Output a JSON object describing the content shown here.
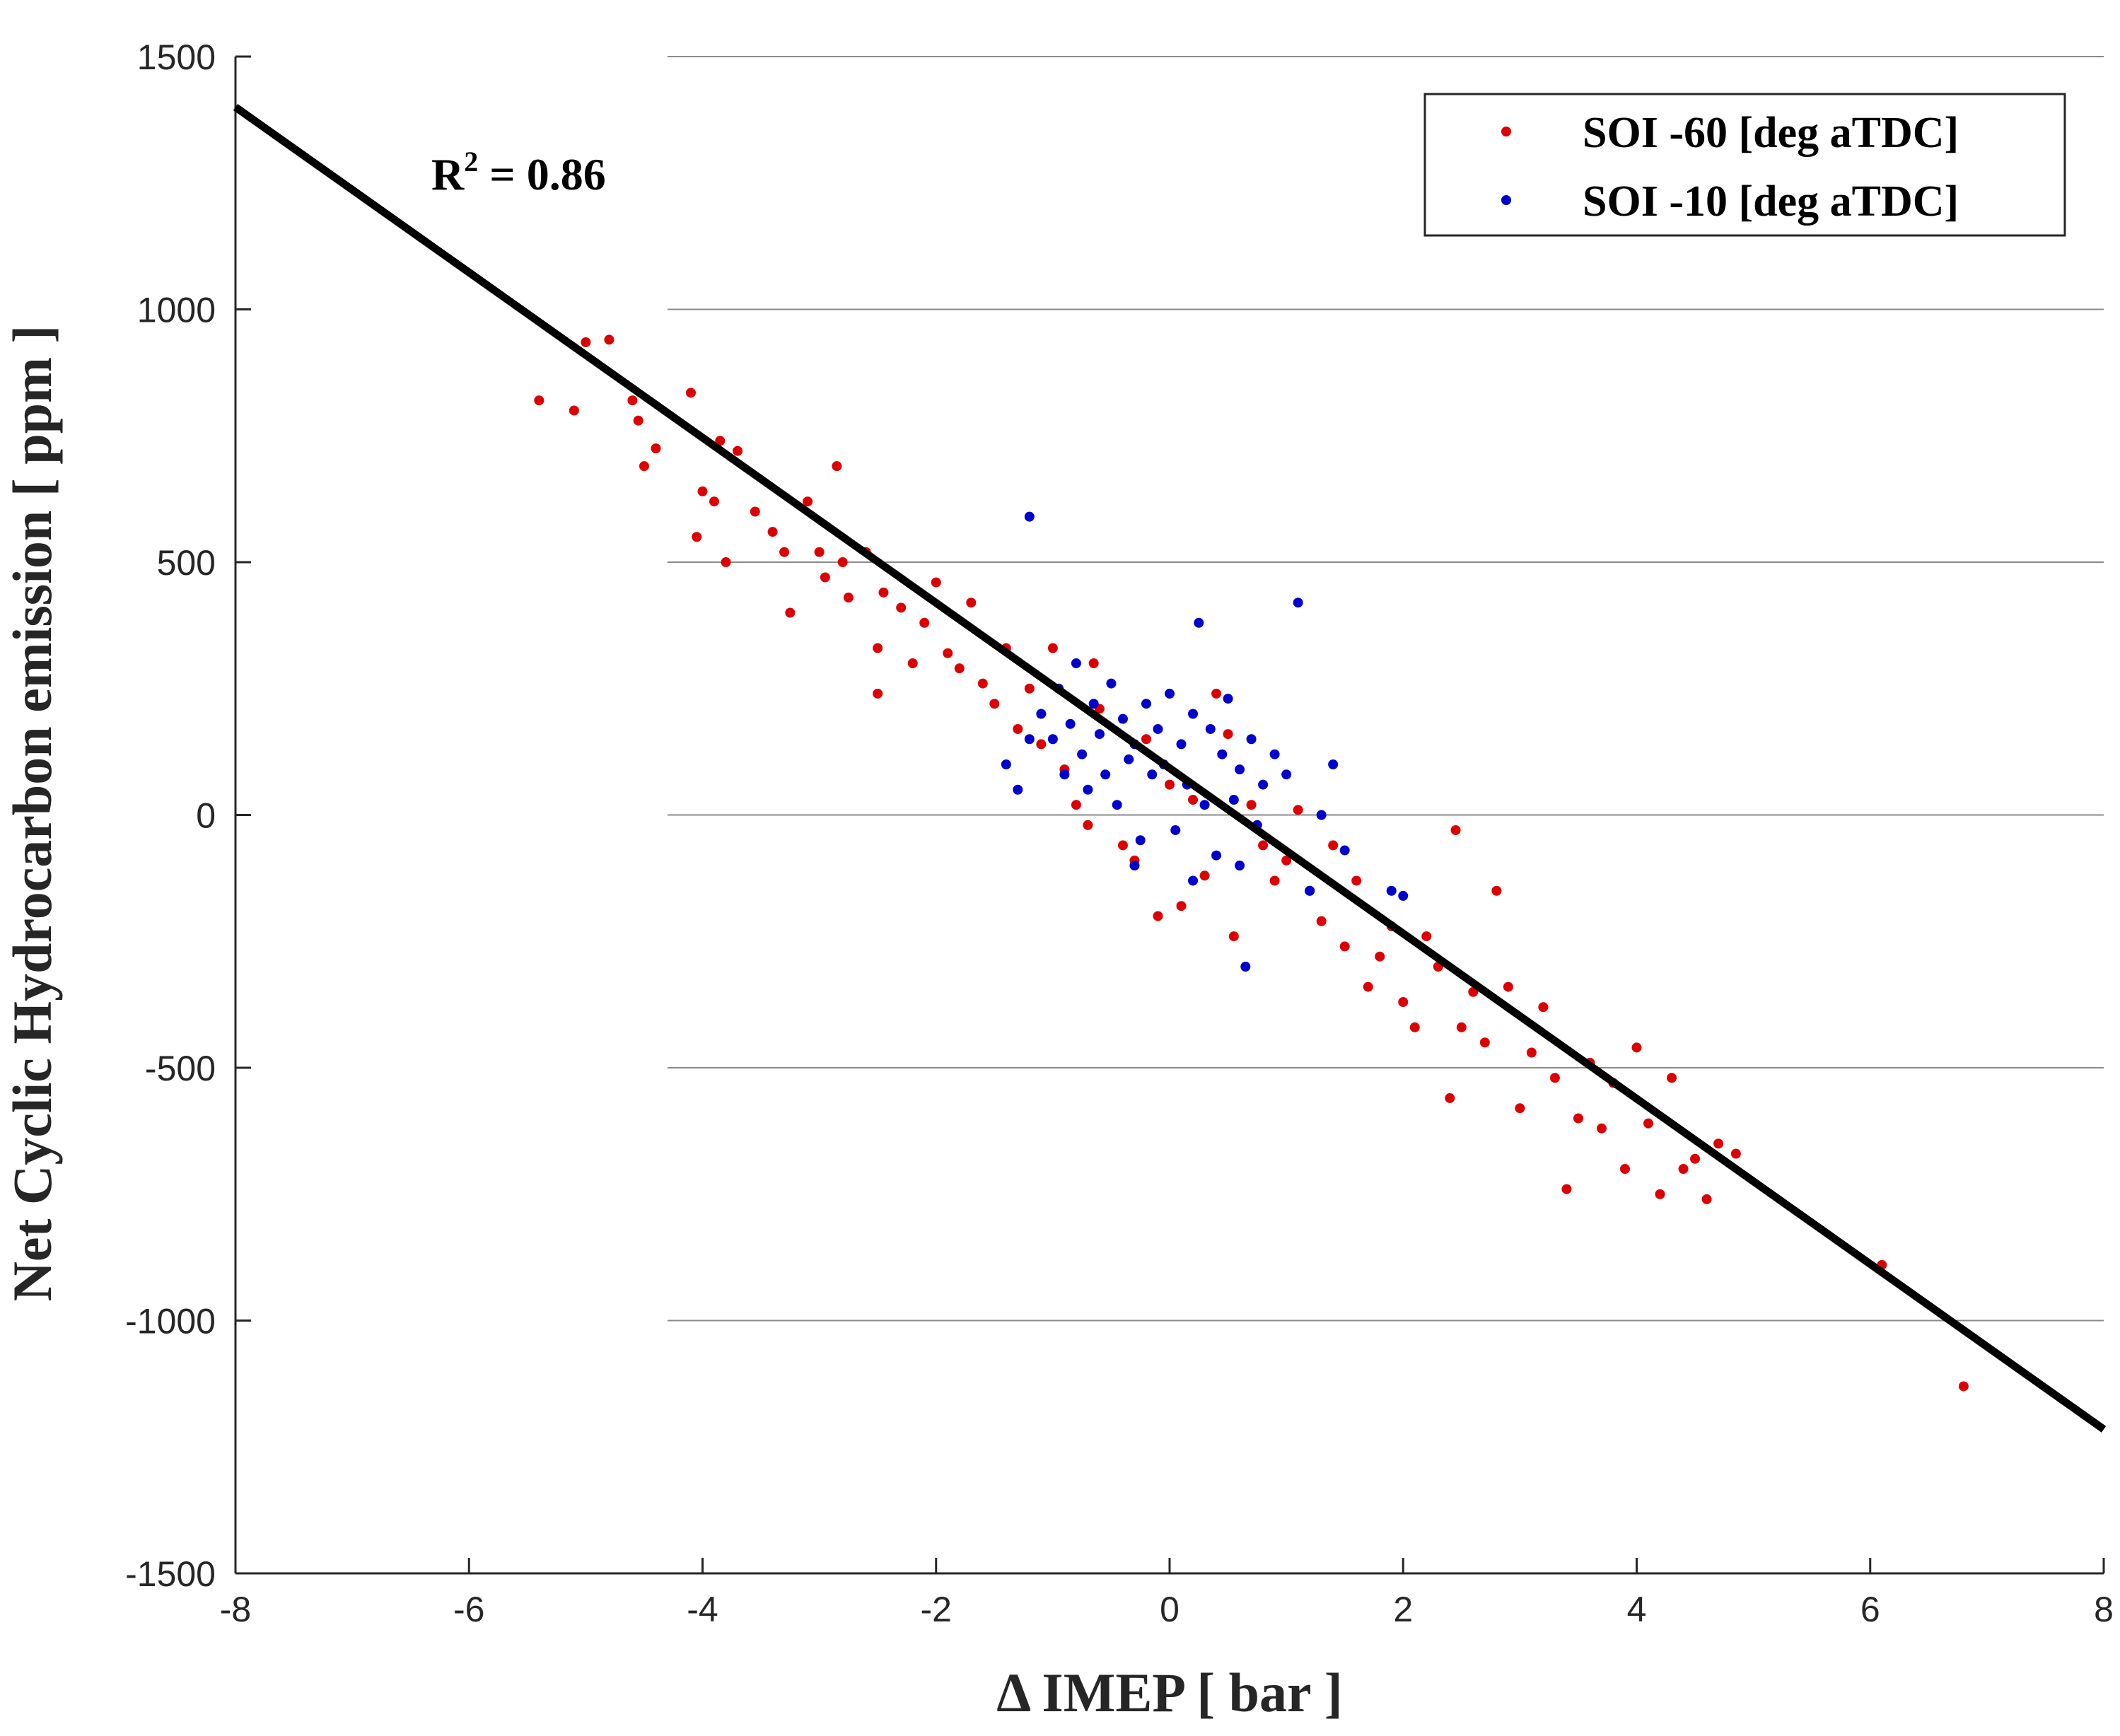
{
  "chart_data": {
    "type": "scatter",
    "title": "",
    "xlabel": "Δ IMEP [ bar ]",
    "ylabel": "Net Cyclic Hydrocarbon emission [ ppm ]",
    "xlim": [
      -8,
      8
    ],
    "ylim": [
      -1500,
      1500
    ],
    "xticks": [
      -8,
      -6,
      -4,
      -2,
      0,
      2,
      4,
      6,
      8
    ],
    "yticks": [
      -1500,
      -1000,
      -500,
      0,
      500,
      1000,
      1500
    ],
    "gridlines": [
      -1000,
      -500,
      0,
      500,
      1000,
      1500
    ],
    "legend_position": "top-right",
    "annotation": {
      "base": "R",
      "sup": "2",
      "rest": " = 0.86"
    },
    "fit_line": {
      "name": "linear fit",
      "x": [
        -8,
        8
      ],
      "y": [
        1400,
        -1215
      ],
      "color": "#000000"
    },
    "series": [
      {
        "name": "SOI -60 [deg aTDC]",
        "color": "#dd0000",
        "points": [
          [
            -5.4,
            820
          ],
          [
            -5.1,
            800
          ],
          [
            -5.0,
            935
          ],
          [
            -4.8,
            940
          ],
          [
            -4.6,
            820
          ],
          [
            -4.55,
            780
          ],
          [
            -4.5,
            690
          ],
          [
            -4.4,
            725
          ],
          [
            -4.1,
            835
          ],
          [
            -4.0,
            640
          ],
          [
            -3.9,
            620
          ],
          [
            -3.85,
            740
          ],
          [
            -3.8,
            500
          ],
          [
            -3.7,
            720
          ],
          [
            -4.05,
            550
          ],
          [
            -3.55,
            600
          ],
          [
            -3.4,
            560
          ],
          [
            -3.3,
            520
          ],
          [
            -3.25,
            400
          ],
          [
            -3.1,
            620
          ],
          [
            -3.0,
            520
          ],
          [
            -2.95,
            470
          ],
          [
            -2.85,
            690
          ],
          [
            -2.8,
            500
          ],
          [
            -2.75,
            430
          ],
          [
            -2.6,
            520
          ],
          [
            -2.5,
            330
          ],
          [
            -2.5,
            240
          ],
          [
            -2.45,
            440
          ],
          [
            -2.3,
            410
          ],
          [
            -2.2,
            300
          ],
          [
            -2.1,
            380
          ],
          [
            -2.0,
            460
          ],
          [
            -1.9,
            320
          ],
          [
            -1.8,
            290
          ],
          [
            -1.7,
            420
          ],
          [
            -1.6,
            260
          ],
          [
            -1.5,
            220
          ],
          [
            -1.4,
            330
          ],
          [
            -1.3,
            170
          ],
          [
            -1.2,
            250
          ],
          [
            -1.1,
            140
          ],
          [
            -1.0,
            330
          ],
          [
            -0.9,
            90
          ],
          [
            -0.8,
            20
          ],
          [
            -0.7,
            -20
          ],
          [
            -0.65,
            300
          ],
          [
            -0.6,
            210
          ],
          [
            -0.4,
            -60
          ],
          [
            -0.3,
            -90
          ],
          [
            -0.2,
            150
          ],
          [
            -0.1,
            -200
          ],
          [
            0.0,
            60
          ],
          [
            0.1,
            -180
          ],
          [
            0.2,
            30
          ],
          [
            0.3,
            -120
          ],
          [
            0.4,
            240
          ],
          [
            0.5,
            160
          ],
          [
            0.55,
            -240
          ],
          [
            0.7,
            20
          ],
          [
            0.8,
            -60
          ],
          [
            0.9,
            -130
          ],
          [
            1.0,
            -90
          ],
          [
            1.1,
            10
          ],
          [
            1.2,
            -150
          ],
          [
            1.3,
            -210
          ],
          [
            1.4,
            -60
          ],
          [
            1.5,
            -260
          ],
          [
            1.6,
            -130
          ],
          [
            1.7,
            -340
          ],
          [
            1.8,
            -280
          ],
          [
            1.9,
            -220
          ],
          [
            2.0,
            -370
          ],
          [
            2.1,
            -420
          ],
          [
            2.2,
            -240
          ],
          [
            2.3,
            -300
          ],
          [
            2.4,
            -560
          ],
          [
            2.5,
            -420
          ],
          [
            2.6,
            -350
          ],
          [
            2.7,
            -450
          ],
          [
            2.8,
            -150
          ],
          [
            2.9,
            -340
          ],
          [
            3.0,
            -580
          ],
          [
            3.1,
            -470
          ],
          [
            3.2,
            -380
          ],
          [
            3.3,
            -520
          ],
          [
            3.4,
            -740
          ],
          [
            3.5,
            -600
          ],
          [
            3.6,
            -490
          ],
          [
            3.7,
            -620
          ],
          [
            3.8,
            -530
          ],
          [
            3.9,
            -700
          ],
          [
            4.0,
            -460
          ],
          [
            4.1,
            -610
          ],
          [
            4.2,
            -750
          ],
          [
            4.3,
            -520
          ],
          [
            4.4,
            -700
          ],
          [
            4.5,
            -680
          ],
          [
            4.6,
            -760
          ],
          [
            4.7,
            -650
          ],
          [
            4.85,
            -670
          ],
          [
            2.45,
            -30
          ],
          [
            6.1,
            -890
          ],
          [
            6.8,
            -1130
          ]
        ]
      },
      {
        "name": "SOI -10 [deg aTDC]",
        "color": "#0000cc",
        "points": [
          [
            -1.2,
            590
          ],
          [
            -1.4,
            100
          ],
          [
            -1.3,
            50
          ],
          [
            -1.2,
            150
          ],
          [
            -1.1,
            200
          ],
          [
            -1.0,
            150
          ],
          [
            -0.95,
            250
          ],
          [
            -0.9,
            80
          ],
          [
            -0.85,
            180
          ],
          [
            -0.8,
            300
          ],
          [
            -0.75,
            120
          ],
          [
            -0.7,
            50
          ],
          [
            -0.65,
            220
          ],
          [
            -0.6,
            160
          ],
          [
            -0.55,
            80
          ],
          [
            -0.5,
            260
          ],
          [
            -0.45,
            20
          ],
          [
            -0.4,
            190
          ],
          [
            -0.35,
            110
          ],
          [
            -0.3,
            140
          ],
          [
            -0.25,
            -50
          ],
          [
            -0.2,
            220
          ],
          [
            -0.15,
            80
          ],
          [
            -0.1,
            170
          ],
          [
            -0.05,
            100
          ],
          [
            0.0,
            240
          ],
          [
            0.05,
            -30
          ],
          [
            0.1,
            140
          ],
          [
            0.15,
            60
          ],
          [
            0.2,
            200
          ],
          [
            0.25,
            380
          ],
          [
            0.3,
            20
          ],
          [
            0.35,
            170
          ],
          [
            0.4,
            -80
          ],
          [
            0.45,
            120
          ],
          [
            0.5,
            230
          ],
          [
            0.55,
            30
          ],
          [
            0.6,
            90
          ],
          [
            0.65,
            -300
          ],
          [
            0.7,
            150
          ],
          [
            0.75,
            -20
          ],
          [
            0.8,
            60
          ],
          [
            0.9,
            120
          ],
          [
            1.0,
            80
          ],
          [
            1.1,
            420
          ],
          [
            1.2,
            -150
          ],
          [
            1.3,
            0
          ],
          [
            1.4,
            100
          ],
          [
            1.5,
            -70
          ],
          [
            1.9,
            -150
          ],
          [
            2.0,
            -160
          ],
          [
            -0.3,
            -100
          ],
          [
            0.2,
            -130
          ],
          [
            0.6,
            -100
          ]
        ]
      }
    ]
  }
}
